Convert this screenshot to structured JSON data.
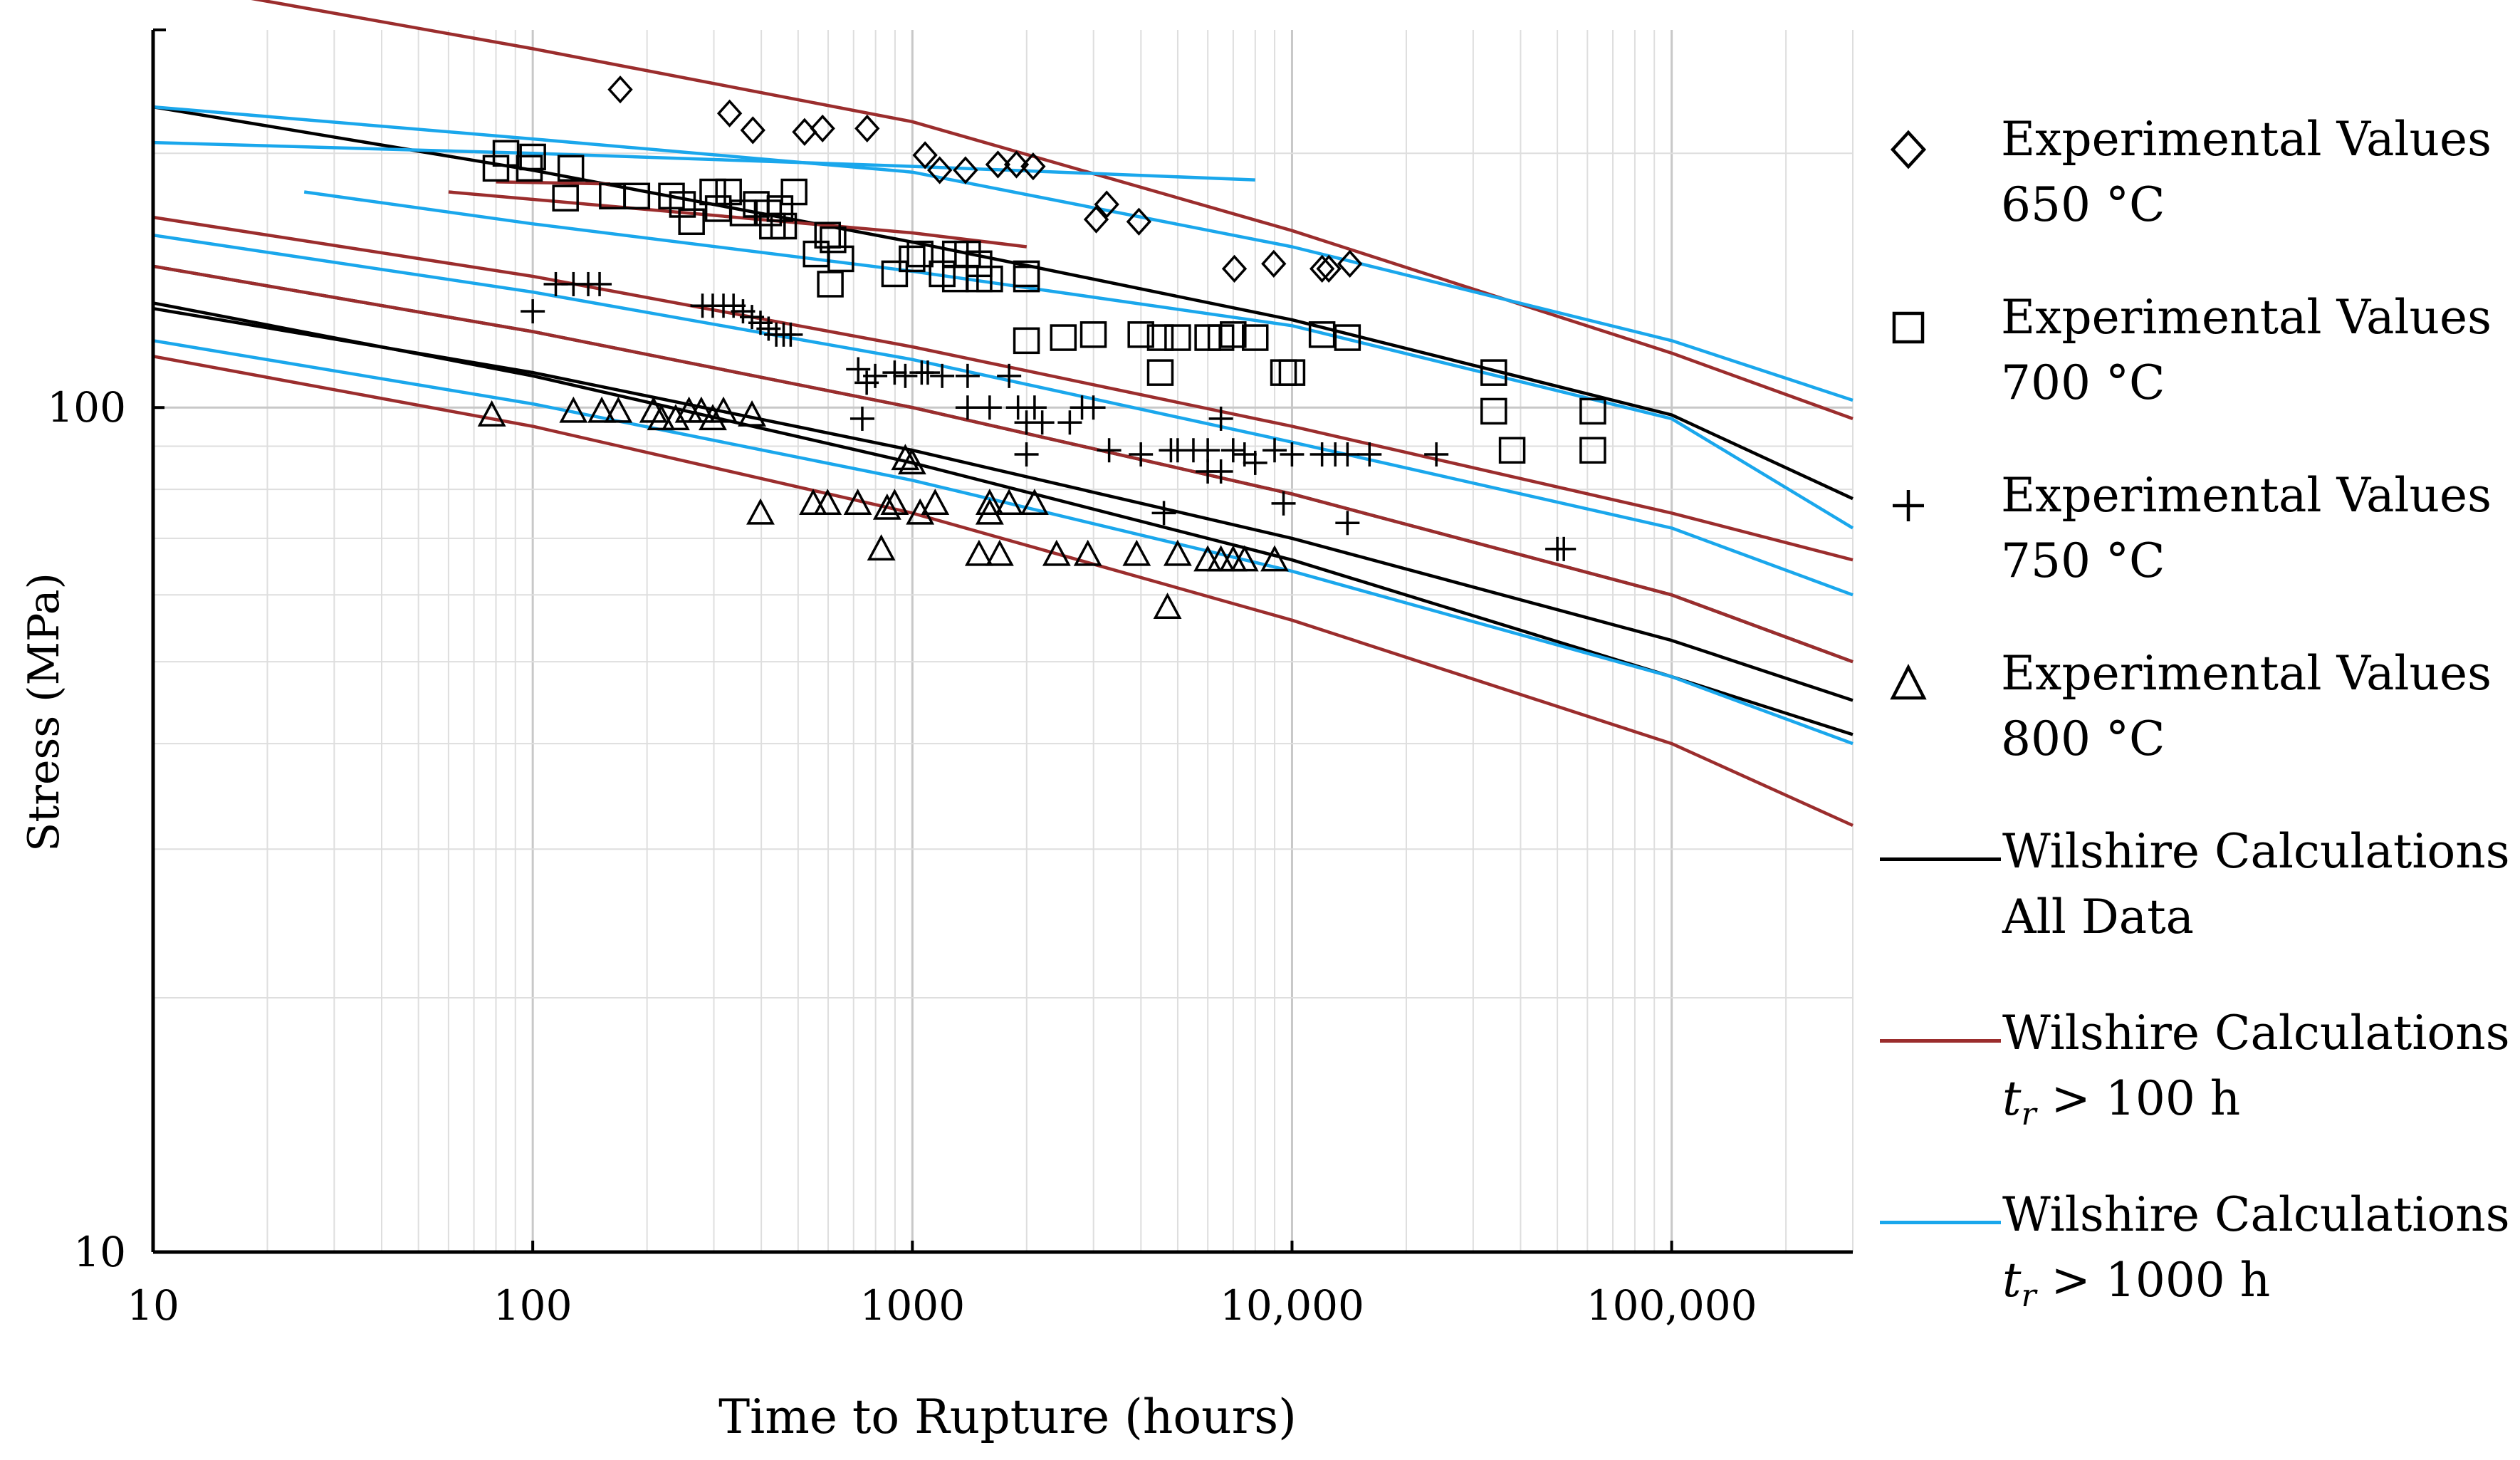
{
  "chart_data": {
    "type": "scatter",
    "xlabel": "Time to Rupture (hours)",
    "ylabel": "Stress (MPa)",
    "xscale": "log",
    "yscale": "log",
    "xlim": [
      10,
      300000
    ],
    "ylim": [
      10,
      280
    ],
    "x_ticks": [
      {
        "value": 10,
        "label": "10"
      },
      {
        "value": 100,
        "label": "100"
      },
      {
        "value": 1000,
        "label": "1000"
      },
      {
        "value": 10000,
        "label": "10,000"
      },
      {
        "value": 100000,
        "label": "100,000"
      }
    ],
    "y_ticks": [
      {
        "value": 10,
        "label": "10"
      },
      {
        "value": 100,
        "label": "100"
      }
    ],
    "grid": "log major and minor",
    "series": [
      {
        "name": "650C",
        "marker": "diamond",
        "label_main": "Experimental Values",
        "label_sub": "650 °C",
        "points": [
          [
            170,
            238
          ],
          [
            330,
            223
          ],
          [
            380,
            213
          ],
          [
            520,
            212
          ],
          [
            580,
            214
          ],
          [
            760,
            214
          ],
          [
            1080,
            199
          ],
          [
            1180,
            191
          ],
          [
            1380,
            191
          ],
          [
            1680,
            194
          ],
          [
            1880,
            194
          ],
          [
            2080,
            193
          ],
          [
            3050,
            167
          ],
          [
            3250,
            174
          ],
          [
            3950,
            166
          ],
          [
            7050,
            146
          ],
          [
            8950,
            148
          ],
          [
            12000,
            146
          ],
          [
            12500,
            146
          ],
          [
            14200,
            148
          ]
        ]
      },
      {
        "name": "700C",
        "marker": "square",
        "label_main": "Experimental Values",
        "label_sub": "700 °C",
        "points": [
          [
            80,
            192
          ],
          [
            85,
            200
          ],
          [
            98,
            192
          ],
          [
            100,
            198
          ],
          [
            126,
            192
          ],
          [
            122,
            177
          ],
          [
            162,
            178
          ],
          [
            188,
            178
          ],
          [
            232,
            178
          ],
          [
            248,
            174
          ],
          [
            262,
            166
          ],
          [
            298,
            180
          ],
          [
            328,
            180
          ],
          [
            308,
            172
          ],
          [
            358,
            170
          ],
          [
            388,
            174
          ],
          [
            418,
            170
          ],
          [
            428,
            164
          ],
          [
            448,
            172
          ],
          [
            458,
            164
          ],
          [
            488,
            180
          ],
          [
            558,
            152
          ],
          [
            598,
            160
          ],
          [
            608,
            140
          ],
          [
            618,
            158
          ],
          [
            648,
            150
          ],
          [
            898,
            144
          ],
          [
            998,
            150
          ],
          [
            1048,
            152
          ],
          [
            1198,
            144
          ],
          [
            1298,
            152
          ],
          [
            1398,
            152
          ],
          [
            1298,
            142
          ],
          [
            1498,
            148
          ],
          [
            1498,
            142
          ],
          [
            1598,
            142
          ],
          [
            1998,
            144
          ],
          [
            1998,
            142
          ],
          [
            1998,
            120
          ],
          [
            2498,
            121
          ],
          [
            2998,
            122
          ],
          [
            3998,
            122
          ],
          [
            4498,
            121
          ],
          [
            4498,
            110
          ],
          [
            4998,
            121
          ],
          [
            5998,
            121
          ],
          [
            6498,
            121
          ],
          [
            6998,
            122
          ],
          [
            7998,
            121
          ],
          [
            9498,
            110
          ],
          [
            9998,
            110
          ],
          [
            11998,
            122
          ],
          [
            13998,
            121
          ],
          [
            33998,
            110
          ],
          [
            33998,
            99
          ],
          [
            37998,
            89
          ],
          [
            61998,
            99
          ],
          [
            61998,
            89
          ]
        ]
      },
      {
        "name": "750C",
        "marker": "plus",
        "label_main": "Experimental Values",
        "label_sub": "750 °C",
        "points": [
          [
            100,
            130
          ],
          [
            115,
            140
          ],
          [
            128,
            140
          ],
          [
            140,
            140
          ],
          [
            150,
            140
          ],
          [
            280,
            132
          ],
          [
            298,
            132
          ],
          [
            318,
            132
          ],
          [
            338,
            132
          ],
          [
            358,
            130
          ],
          [
            378,
            128
          ],
          [
            398,
            126
          ],
          [
            418,
            124
          ],
          [
            438,
            122
          ],
          [
            458,
            122
          ],
          [
            478,
            122
          ],
          [
            720,
            111
          ],
          [
            738,
            97
          ],
          [
            758,
            107
          ],
          [
            798,
            109
          ],
          [
            898,
            110
          ],
          [
            958,
            109
          ],
          [
            1058,
            110
          ],
          [
            1098,
            110
          ],
          [
            1198,
            109
          ],
          [
            1398,
            100
          ],
          [
            1398,
            109
          ],
          [
            1598,
            100
          ],
          [
            1798,
            109
          ],
          [
            1898,
            100
          ],
          [
            1998,
            88
          ],
          [
            1998,
            96
          ],
          [
            2098,
            100
          ],
          [
            2198,
            96
          ],
          [
            2598,
            96
          ],
          [
            2798,
            100
          ],
          [
            2998,
            100
          ],
          [
            3298,
            89
          ],
          [
            3998,
            88
          ],
          [
            4598,
            75
          ],
          [
            4798,
            89
          ],
          [
            4998,
            89
          ],
          [
            5498,
            89
          ],
          [
            5998,
            89
          ],
          [
            5998,
            84
          ],
          [
            6498,
            97
          ],
          [
            6498,
            84
          ],
          [
            6998,
            89
          ],
          [
            7498,
            88
          ],
          [
            7998,
            86
          ],
          [
            8998,
            89
          ],
          [
            9498,
            77
          ],
          [
            9998,
            88
          ],
          [
            11998,
            88
          ],
          [
            12998,
            88
          ],
          [
            13998,
            73
          ],
          [
            13998,
            88
          ],
          [
            15998,
            88
          ],
          [
            23998,
            88
          ],
          [
            49998,
            68
          ],
          [
            51998,
            68
          ]
        ]
      },
      {
        "name": "800C",
        "marker": "triangle",
        "label_main": "Experimental Values",
        "label_sub": "800 °C",
        "points": [
          [
            78,
            98
          ],
          [
            128,
            99
          ],
          [
            152,
            99
          ],
          [
            168,
            99
          ],
          [
            208,
            99
          ],
          [
            218,
            97
          ],
          [
            238,
            97
          ],
          [
            258,
            99
          ],
          [
            278,
            99
          ],
          [
            298,
            97
          ],
          [
            318,
            99
          ],
          [
            378,
            98
          ],
          [
            398,
            75
          ],
          [
            548,
            77
          ],
          [
            598,
            77
          ],
          [
            718,
            77
          ],
          [
            828,
            68
          ],
          [
            858,
            76
          ],
          [
            898,
            77
          ],
          [
            958,
            87
          ],
          [
            998,
            86
          ],
          [
            1048,
            75
          ],
          [
            1148,
            77
          ],
          [
            1498,
            67
          ],
          [
            1598,
            75
          ],
          [
            1598,
            77
          ],
          [
            1698,
            67
          ],
          [
            1798,
            77
          ],
          [
            2098,
            77
          ],
          [
            2398,
            67
          ],
          [
            2898,
            67
          ],
          [
            3898,
            67
          ],
          [
            4698,
            58
          ],
          [
            4998,
            67
          ],
          [
            5998,
            66
          ],
          [
            6498,
            66
          ],
          [
            6998,
            66
          ],
          [
            7498,
            66
          ],
          [
            8998,
            66
          ]
        ]
      }
    ],
    "lines": [
      {
        "name": "Wilshire Calculations All Data",
        "color": "#000000",
        "curves": [
          [
            [
              10,
              227
            ],
            [
              100,
              191
            ],
            [
              1000,
              157
            ],
            [
              10000,
              127
            ],
            [
              100000,
              98
            ],
            [
              300000,
              78
            ]
          ],
          [
            [
              10,
              131
            ],
            [
              100,
              110
            ],
            [
              1000,
              89
            ],
            [
              10000,
              70
            ],
            [
              100000,
              53
            ],
            [
              300000,
              45
            ]
          ],
          [
            [
              10,
              147
            ],
            [
              100,
              123
            ],
            [
              1000,
              100
            ],
            [
              10000,
              79
            ],
            [
              100000,
              60
            ],
            [
              300000,
              50
            ]
          ],
          [
            [
              10,
              133
            ],
            [
              100,
              109
            ],
            [
              1000,
              86
            ],
            [
              10000,
              66
            ],
            [
              100000,
              48
            ],
            [
              300000,
              41
            ]
          ]
        ]
      },
      {
        "name": "Wilshire Calculations t_r > 100 h",
        "color": "#9b2d2d",
        "curves": [
          [
            [
              10,
              320
            ],
            [
              100,
              266
            ],
            [
              1000,
              218
            ],
            [
              10000,
              162
            ],
            [
              100000,
              116
            ],
            [
              300000,
              97
            ]
          ],
          [
            [
              10,
              168
            ],
            [
              100,
              143
            ],
            [
              1000,
              118
            ],
            [
              10000,
              95
            ],
            [
              100000,
              75
            ],
            [
              300000,
              66
            ]
          ],
          [
            [
              10,
              147
            ],
            [
              100,
              123
            ],
            [
              1000,
              100
            ],
            [
              10000,
              79
            ],
            [
              100000,
              60
            ],
            [
              300000,
              50
            ]
          ],
          [
            [
              10,
              115
            ],
            [
              100,
              95
            ],
            [
              1000,
              75
            ],
            [
              10000,
              56
            ],
            [
              100000,
              40
            ],
            [
              300000,
              32
            ]
          ],
          [
            [
              80,
              185
            ],
            [
              160,
              184
            ]
          ],
          [
            [
              60,
              180
            ],
            [
              1000,
              161
            ],
            [
              2000,
              155
            ]
          ]
        ]
      },
      {
        "name": "Wilshire Calculations t_r > 1000 h",
        "color": "#1aa7ec",
        "curves": [
          [
            [
              10,
              227
            ],
            [
              100,
              208
            ],
            [
              1000,
              190
            ],
            [
              10000,
              155
            ],
            [
              100000,
              120
            ],
            [
              300000,
              102
            ]
          ],
          [
            [
              10,
              206
            ],
            [
              100,
              200
            ],
            [
              1000,
              193
            ],
            [
              8000,
              186
            ]
          ],
          [
            [
              25,
              180
            ],
            [
              100,
              165
            ],
            [
              1000,
              145
            ],
            [
              10000,
              125
            ],
            [
              100000,
              97
            ],
            [
              300000,
              72
            ]
          ],
          [
            [
              10,
              160
            ],
            [
              100,
              137
            ],
            [
              1000,
              114
            ],
            [
              10000,
              91
            ],
            [
              100000,
              72
            ],
            [
              300000,
              60
            ]
          ],
          [
            [
              10,
              120
            ],
            [
              100,
              101
            ],
            [
              1000,
              82
            ],
            [
              10000,
              64
            ],
            [
              100000,
              48
            ],
            [
              300000,
              40
            ]
          ]
        ]
      }
    ],
    "legend": {
      "placement": "right",
      "line_entries": [
        {
          "line1": "Wilshire Calculations",
          "line2_prefix": "All Data",
          "var": "",
          "sub": "",
          "rest": ""
        },
        {
          "line1": "Wilshire Calculations",
          "line2_prefix": "",
          "var": "t",
          "sub": "r",
          "rest": " > 100 h"
        },
        {
          "line1": "Wilshire Calculations",
          "line2_prefix": "",
          "var": "t",
          "sub": "r",
          "rest": " > 1000 h"
        }
      ]
    }
  }
}
